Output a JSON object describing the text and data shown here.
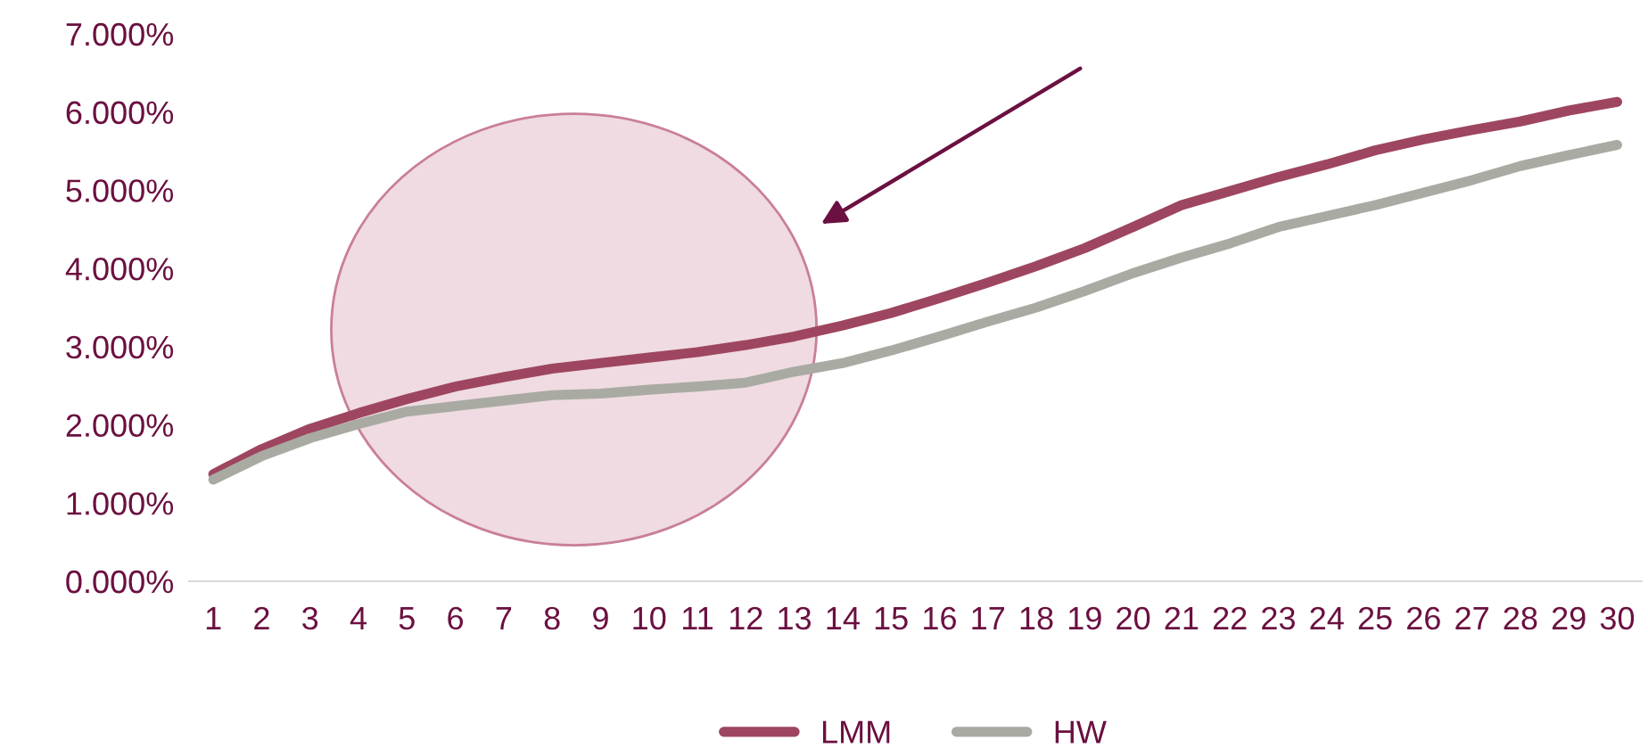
{
  "chart_data": {
    "type": "line",
    "categories": [
      "1",
      "2",
      "3",
      "4",
      "5",
      "6",
      "7",
      "8",
      "9",
      "10",
      "11",
      "12",
      "13",
      "14",
      "15",
      "16",
      "17",
      "18",
      "19",
      "20",
      "21",
      "22",
      "23",
      "24",
      "25",
      "26",
      "27",
      "28",
      "29",
      "30"
    ],
    "series": [
      {
        "name": "LMM",
        "color": "#9e4660",
        "values": [
          1.37,
          1.69,
          1.95,
          2.15,
          2.33,
          2.49,
          2.61,
          2.72,
          2.79,
          2.86,
          2.93,
          3.02,
          3.13,
          3.27,
          3.43,
          3.62,
          3.82,
          4.03,
          4.26,
          4.53,
          4.81,
          4.99,
          5.17,
          5.33,
          5.51,
          5.65,
          5.77,
          5.88,
          6.02,
          6.13
        ]
      },
      {
        "name": "HW",
        "color": "#a9aba3",
        "values": [
          1.3,
          1.6,
          1.83,
          2.01,
          2.17,
          2.24,
          2.31,
          2.38,
          2.4,
          2.45,
          2.49,
          2.54,
          2.68,
          2.79,
          2.95,
          3.13,
          3.32,
          3.5,
          3.71,
          3.94,
          4.14,
          4.32,
          4.53,
          4.67,
          4.81,
          4.97,
          5.13,
          5.31,
          5.45,
          5.58
        ]
      }
    ],
    "ylim": [
      0,
      7
    ],
    "yticks": [
      {
        "value": 0,
        "label": "0.000%"
      },
      {
        "value": 1,
        "label": "1.000%"
      },
      {
        "value": 2,
        "label": "2.000%"
      },
      {
        "value": 3,
        "label": "3.000%"
      },
      {
        "value": 4,
        "label": "4.000%"
      },
      {
        "value": 5,
        "label": "5.000%"
      },
      {
        "value": 6,
        "label": "6.000%"
      },
      {
        "value": 7,
        "label": "7.000%"
      }
    ],
    "grid": false,
    "legend": "bottom",
    "marker": "none",
    "line_style": "solid"
  }
}
